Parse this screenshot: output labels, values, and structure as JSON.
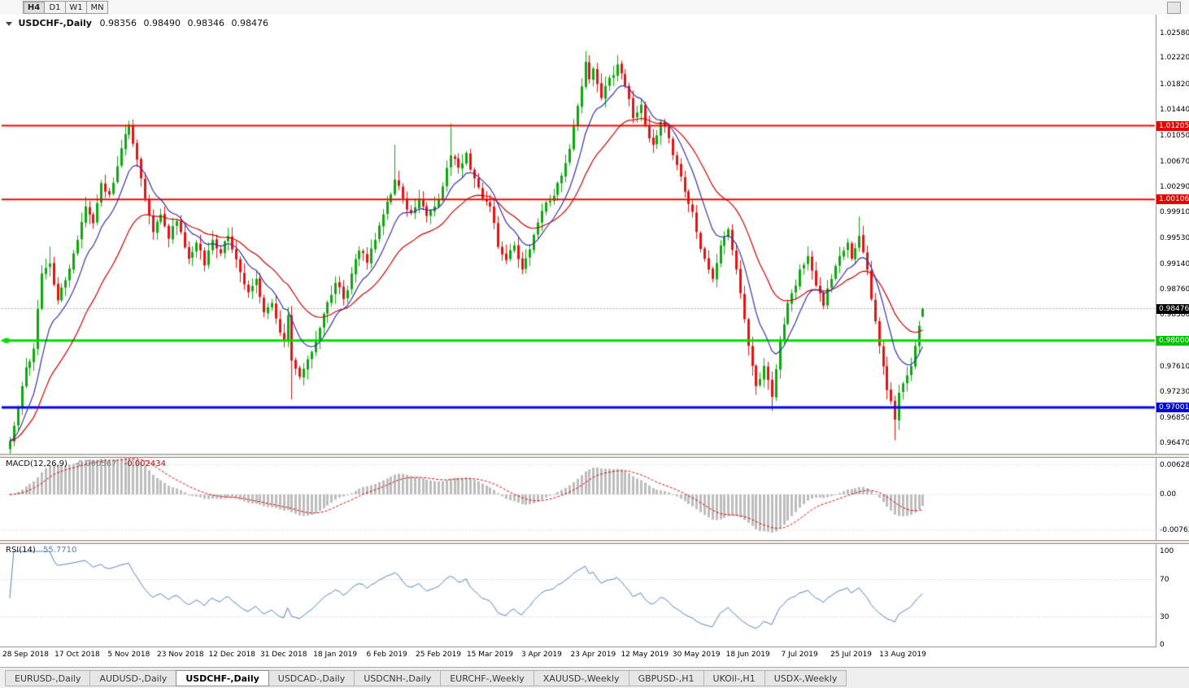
{
  "toolbar": {
    "timeframes": [
      {
        "label": "H4",
        "active": true
      },
      {
        "label": "D1",
        "active": false
      },
      {
        "label": "W1",
        "active": false
      },
      {
        "label": "MN",
        "active": false
      }
    ]
  },
  "chart": {
    "symbol_title": "USDCHF-,Daily",
    "open": "0.98356",
    "high": "0.98490",
    "low": "0.98346",
    "close": "0.98476"
  },
  "indicators": {
    "macd": {
      "title": "MACD(12,26,9)",
      "value_main": "-0.000567",
      "value_signal": "-0.002434",
      "axis_labels": [
        "0.00628",
        "0.00",
        "-0.00762"
      ]
    },
    "rsi": {
      "title": "RSI(14)",
      "value": "55.7710",
      "axis_labels": [
        "100",
        "70",
        "30",
        "0"
      ],
      "levels": [
        70,
        30
      ]
    }
  },
  "tabs": [
    {
      "label": "EURUSD-,Daily",
      "active": false
    },
    {
      "label": "AUDUSD-,Daily",
      "active": false
    },
    {
      "label": "USDCHF-,Daily",
      "active": true
    },
    {
      "label": "USDCAD-,Daily",
      "active": false
    },
    {
      "label": "USDCNH-,Daily",
      "active": false
    },
    {
      "label": "EURCHF-,Weekly",
      "active": false
    },
    {
      "label": "XAUUSD-,Weekly",
      "active": false
    },
    {
      "label": "GBPUSD-,H1",
      "active": false
    },
    {
      "label": "UKOil-,H1",
      "active": false
    },
    {
      "label": "USDX-,Weekly",
      "active": false
    }
  ],
  "chart_data": {
    "type": "candlestick",
    "symbol": "USDCHF",
    "timeframe": "Daily",
    "bar_count": 231,
    "ylim": [
      0.9631,
      1.0279
    ],
    "last_bar": {
      "open": 0.98356,
      "high": 0.9849,
      "low": 0.98346,
      "close": 0.98476
    },
    "current_price": 0.98476,
    "price_axis_labels": [
      "1.02580",
      "1.02220",
      "1.01820",
      "1.01440",
      "1.01050",
      "1.00670",
      "1.00290",
      "0.99910",
      "0.99530",
      "0.99140",
      "0.98760",
      "0.98380",
      "0.97610",
      "0.97230",
      "0.96850",
      "0.96470"
    ],
    "price_tags": [
      {
        "text": "1.01205",
        "price": 1.01205,
        "bg": "#e60000"
      },
      {
        "text": "1.00106",
        "price": 1.00106,
        "bg": "#e60000"
      },
      {
        "text": "0.98476",
        "price": 0.98476,
        "bg": "#000000"
      },
      {
        "text": "0.98000",
        "price": 0.98,
        "bg": "#00c300"
      },
      {
        "text": "0.97001",
        "price": 0.97001,
        "bg": "#0000dd"
      }
    ],
    "hlines": [
      {
        "price": 1.01205,
        "color": "#ff0000",
        "width": 2
      },
      {
        "price": 1.00106,
        "color": "#ff0000",
        "width": 2
      },
      {
        "price": 0.98,
        "color": "#00dd00",
        "width": 3
      },
      {
        "price": 0.97001,
        "color": "#0000ff",
        "width": 3
      }
    ],
    "colors": {
      "up": "#0da80d",
      "down": "#ea1010",
      "ma_fast": "#3333aa",
      "ma_slow": "#cc0000",
      "macd_hist": "#bdbdbd",
      "macd_signal": "#dd0000",
      "rsi": "#4f81bd",
      "grid": "#c8c8c8",
      "current_line": "#b0b0b0"
    },
    "ma": {
      "fast_period": 10,
      "slow_period": 25
    },
    "macd": {
      "fast": 12,
      "slow": 26,
      "signal": 9
    },
    "rsi": {
      "period": 14
    },
    "date_ticks": {
      "first_bar": 4,
      "step": 13,
      "labels": [
        "28 Sep 2018",
        "17 Oct 2018",
        "5 Nov 2018",
        "23 Nov 2018",
        "12 Dec 2018",
        "31 Dec 2018",
        "18 Jan 2019",
        "6 Feb 2019",
        "25 Feb 2019",
        "15 Mar 2019",
        "3 Apr 2019",
        "23 Apr 2019",
        "12 May 2019",
        "30 May 2019",
        "18 Jun 2019",
        "7 Jul 2019",
        "25 Jul 2019",
        "13 Aug 2019"
      ]
    },
    "waypoints": [
      [
        0,
        0.965
      ],
      [
        2,
        0.97
      ],
      [
        4,
        0.976
      ],
      [
        6,
        0.9788
      ],
      [
        8,
        0.99
      ],
      [
        10,
        0.9915
      ],
      [
        12,
        0.986
      ],
      [
        14,
        0.989
      ],
      [
        16,
        0.993
      ],
      [
        17,
        0.995
      ],
      [
        19,
        1.0
      ],
      [
        21,
        0.9975
      ],
      [
        23,
        1.0035
      ],
      [
        25,
        1.0018
      ],
      [
        27,
        1.006
      ],
      [
        29,
        1.0108
      ],
      [
        30,
        1.0122
      ],
      [
        32,
        1.007
      ],
      [
        34,
        1.0012
      ],
      [
        36,
        0.9962
      ],
      [
        38,
        0.9988
      ],
      [
        40,
        0.9952
      ],
      [
        42,
        0.9978
      ],
      [
        43,
        0.9962
      ],
      [
        45,
        0.9922
      ],
      [
        47,
        0.9946
      ],
      [
        49,
        0.9912
      ],
      [
        51,
        0.995
      ],
      [
        53,
        0.993
      ],
      [
        55,
        0.9956
      ],
      [
        56,
        0.9936
      ],
      [
        58,
        0.9902
      ],
      [
        60,
        0.9872
      ],
      [
        62,
        0.9892
      ],
      [
        64,
        0.9842
      ],
      [
        66,
        0.9856
      ],
      [
        68,
        0.9812
      ],
      [
        69,
        0.98
      ],
      [
        70,
        0.9838
      ],
      [
        71,
        0.977
      ],
      [
        73,
        0.9746
      ],
      [
        75,
        0.9772
      ],
      [
        77,
        0.98
      ],
      [
        79,
        0.984
      ],
      [
        81,
        0.9868
      ],
      [
        82,
        0.9886
      ],
      [
        84,
        0.9862
      ],
      [
        86,
        0.99
      ],
      [
        88,
        0.9934
      ],
      [
        90,
        0.9916
      ],
      [
        92,
        0.995
      ],
      [
        94,
        0.9988
      ],
      [
        96,
        1.0018
      ],
      [
        97,
        1.004
      ],
      [
        99,
        1.0012
      ],
      [
        101,
        0.999
      ],
      [
        103,
        1.0012
      ],
      [
        105,
        0.9986
      ],
      [
        107,
        1.0
      ],
      [
        109,
        1.003
      ],
      [
        111,
        1.0076
      ],
      [
        113,
        1.0058
      ],
      [
        115,
        1.008
      ],
      [
        117,
        1.0042
      ],
      [
        119,
        1.0012
      ],
      [
        121,
        1.0
      ],
      [
        123,
        0.994
      ],
      [
        125,
        0.992
      ],
      [
        127,
        0.9942
      ],
      [
        129,
        0.9906
      ],
      [
        131,
        0.9936
      ],
      [
        133,
        0.9976
      ],
      [
        135,
        1.0006
      ],
      [
        137,
        1.0016
      ],
      [
        139,
        1.0046
      ],
      [
        141,
        1.0086
      ],
      [
        143,
        1.015
      ],
      [
        145,
        1.0216
      ],
      [
        146,
        1.019
      ],
      [
        147,
        1.0206
      ],
      [
        149,
        1.0162
      ],
      [
        151,
        1.0192
      ],
      [
        153,
        1.0212
      ],
      [
        155,
        1.018
      ],
      [
        157,
        1.0132
      ],
      [
        159,
        1.0152
      ],
      [
        160,
        1.0122
      ],
      [
        162,
        1.0092
      ],
      [
        164,
        1.0126
      ],
      [
        166,
        1.0102
      ],
      [
        168,
        1.0062
      ],
      [
        170,
        1.0022
      ],
      [
        172,
        0.9992
      ],
      [
        173,
        0.9962
      ],
      [
        175,
        0.9922
      ],
      [
        177,
        0.9892
      ],
      [
        179,
        0.9942
      ],
      [
        181,
        0.9966
      ],
      [
        183,
        0.9906
      ],
      [
        185,
        0.9832
      ],
      [
        186,
        0.9792
      ],
      [
        188,
        0.9732
      ],
      [
        190,
        0.9762
      ],
      [
        192,
        0.9716
      ],
      [
        194,
        0.9802
      ],
      [
        196,
        0.9856
      ],
      [
        198,
        0.9882
      ],
      [
        199,
        0.9906
      ],
      [
        201,
        0.9926
      ],
      [
        203,
        0.9882
      ],
      [
        205,
        0.9852
      ],
      [
        207,
        0.9892
      ],
      [
        209,
        0.9926
      ],
      [
        211,
        0.9946
      ],
      [
        212,
        0.9922
      ],
      [
        214,
        0.9956
      ],
      [
        216,
        0.9906
      ],
      [
        217,
        0.9862
      ],
      [
        219,
        0.9792
      ],
      [
        221,
        0.9726
      ],
      [
        223,
        0.9682
      ],
      [
        224,
        0.9722
      ],
      [
        225,
        0.9736
      ],
      [
        227,
        0.9762
      ],
      [
        228,
        0.9792
      ],
      [
        229,
        0.9822
      ],
      [
        230,
        0.98476
      ]
    ],
    "spikes": [
      [
        10,
        "high",
        0.994
      ],
      [
        30,
        "high",
        1.0128
      ],
      [
        71,
        "low",
        0.9712
      ],
      [
        97,
        "high",
        1.0092
      ],
      [
        111,
        "high",
        1.0124
      ],
      [
        145,
        "high",
        1.0232
      ],
      [
        153,
        "high",
        1.0226
      ],
      [
        192,
        "low",
        0.9695
      ],
      [
        214,
        "high",
        0.9985
      ],
      [
        223,
        "low",
        0.9651
      ]
    ]
  }
}
